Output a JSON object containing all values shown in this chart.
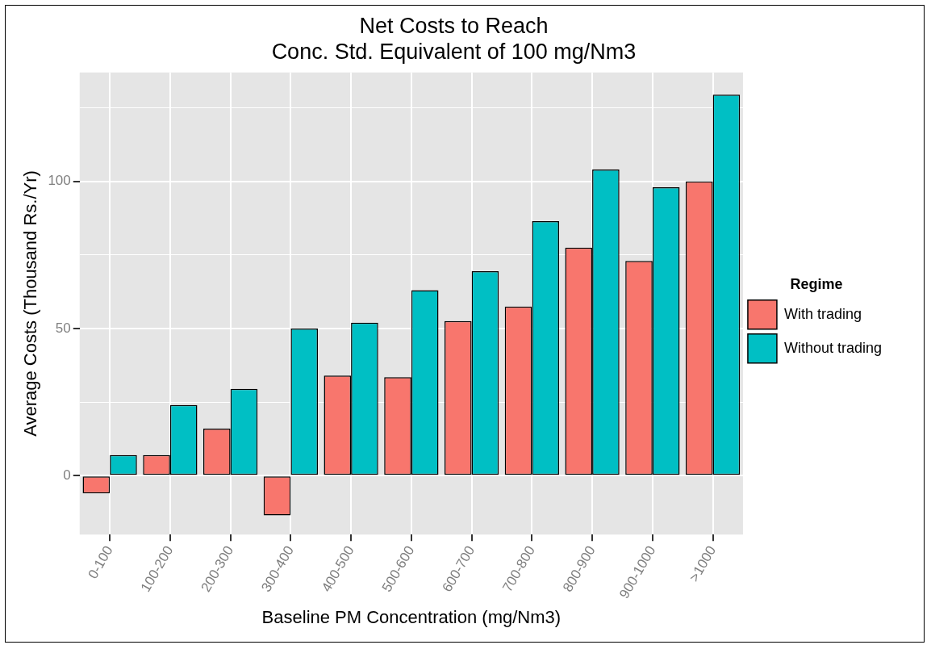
{
  "chart_data": {
    "type": "bar",
    "title": "Net Costs to Reach\nConc. Std. Equivalent of 100 mg/Nm3",
    "xlabel": "Baseline PM Concentration (mg/Nm3)",
    "ylabel": "Average Costs (Thousand Rs./Yr)",
    "legend_title": "Regime",
    "categories": [
      "0-100",
      "100-200",
      "200-300",
      "300-400",
      "400-500",
      "500-600",
      "600-700",
      "700-800",
      "800-900",
      "900-1000",
      ">1000"
    ],
    "series": [
      {
        "name": "With trading",
        "color": "#f8766d",
        "values": [
          -6,
          7,
          16,
          -13.5,
          34,
          33.5,
          52.5,
          57.5,
          77.5,
          73,
          100
        ]
      },
      {
        "name": "Without trading",
        "color": "#00bfc4",
        "values": [
          7,
          24,
          29.5,
          50,
          52,
          63,
          69.5,
          86.5,
          104,
          98,
          129.5
        ]
      }
    ],
    "ylim": [
      -20,
      137
    ],
    "yticks": [
      0,
      {
        "value": 25,
        "label": null
      },
      50,
      {
        "value": 75,
        "label": null
      },
      100,
      {
        "value": 125,
        "label": null
      }
    ],
    "grid": true,
    "legend": "right"
  }
}
